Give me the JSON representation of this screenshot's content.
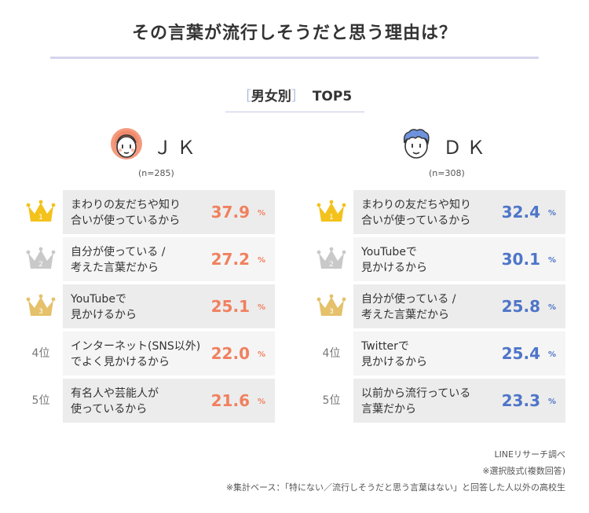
{
  "title": "その言葉が流行しそうだと思う理由は？",
  "subtitle": {
    "open_bracket": "［",
    "group": "男女別",
    "close_bracket": "］",
    "top": "TOP5"
  },
  "colors": {
    "jk": "#f0805f",
    "dk": "#4e75c8",
    "gold": "#f3c21c",
    "silver": "#c9c9c9",
    "bronze": "#e4c16a"
  },
  "chart_data": [
    {
      "type": "table",
      "group": "ＪＫ",
      "n": "(n=285)",
      "unit": "%",
      "rows": [
        {
          "rank": "1",
          "label": "まわりの友だちや知り\n合いが使っているから",
          "value": 37.9,
          "value_text": "37.9"
        },
        {
          "rank": "2",
          "label": "自分が使っている /\n考えた言葉だから",
          "value": 27.2,
          "value_text": "27.2"
        },
        {
          "rank": "3",
          "label": "YouTubeで\n見かけるから",
          "value": 25.1,
          "value_text": "25.1"
        },
        {
          "rank": "4位",
          "label": "インターネット(SNS以外)\nでよく見かけるから",
          "value": 22.0,
          "value_text": "22.0"
        },
        {
          "rank": "5位",
          "label": "有名人や芸能人が\n使っているから",
          "value": 21.6,
          "value_text": "21.6"
        }
      ]
    },
    {
      "type": "table",
      "group": "ＤＫ",
      "n": "(n=308)",
      "unit": "%",
      "rows": [
        {
          "rank": "1",
          "label": "まわりの友だちや知り\n合いが使っているから",
          "value": 32.4,
          "value_text": "32.4"
        },
        {
          "rank": "2",
          "label": "YouTubeで\n見かけるから",
          "value": 30.1,
          "value_text": "30.1"
        },
        {
          "rank": "3",
          "label": "自分が使っている /\n考えた言葉だから",
          "value": 25.8,
          "value_text": "25.8"
        },
        {
          "rank": "4位",
          "label": "Twitterで\n見かけるから",
          "value": 25.4,
          "value_text": "25.4"
        },
        {
          "rank": "5位",
          "label": "以前から流行っている\n言葉だから",
          "value": 23.3,
          "value_text": "23.3"
        }
      ]
    }
  ],
  "footnotes": [
    "LINEリサーチ調べ",
    "※選択肢式(複数回答)",
    "※集計ベース：「特にない／流行しそうだと思う言葉はない」と回答した人以外の高校生"
  ]
}
